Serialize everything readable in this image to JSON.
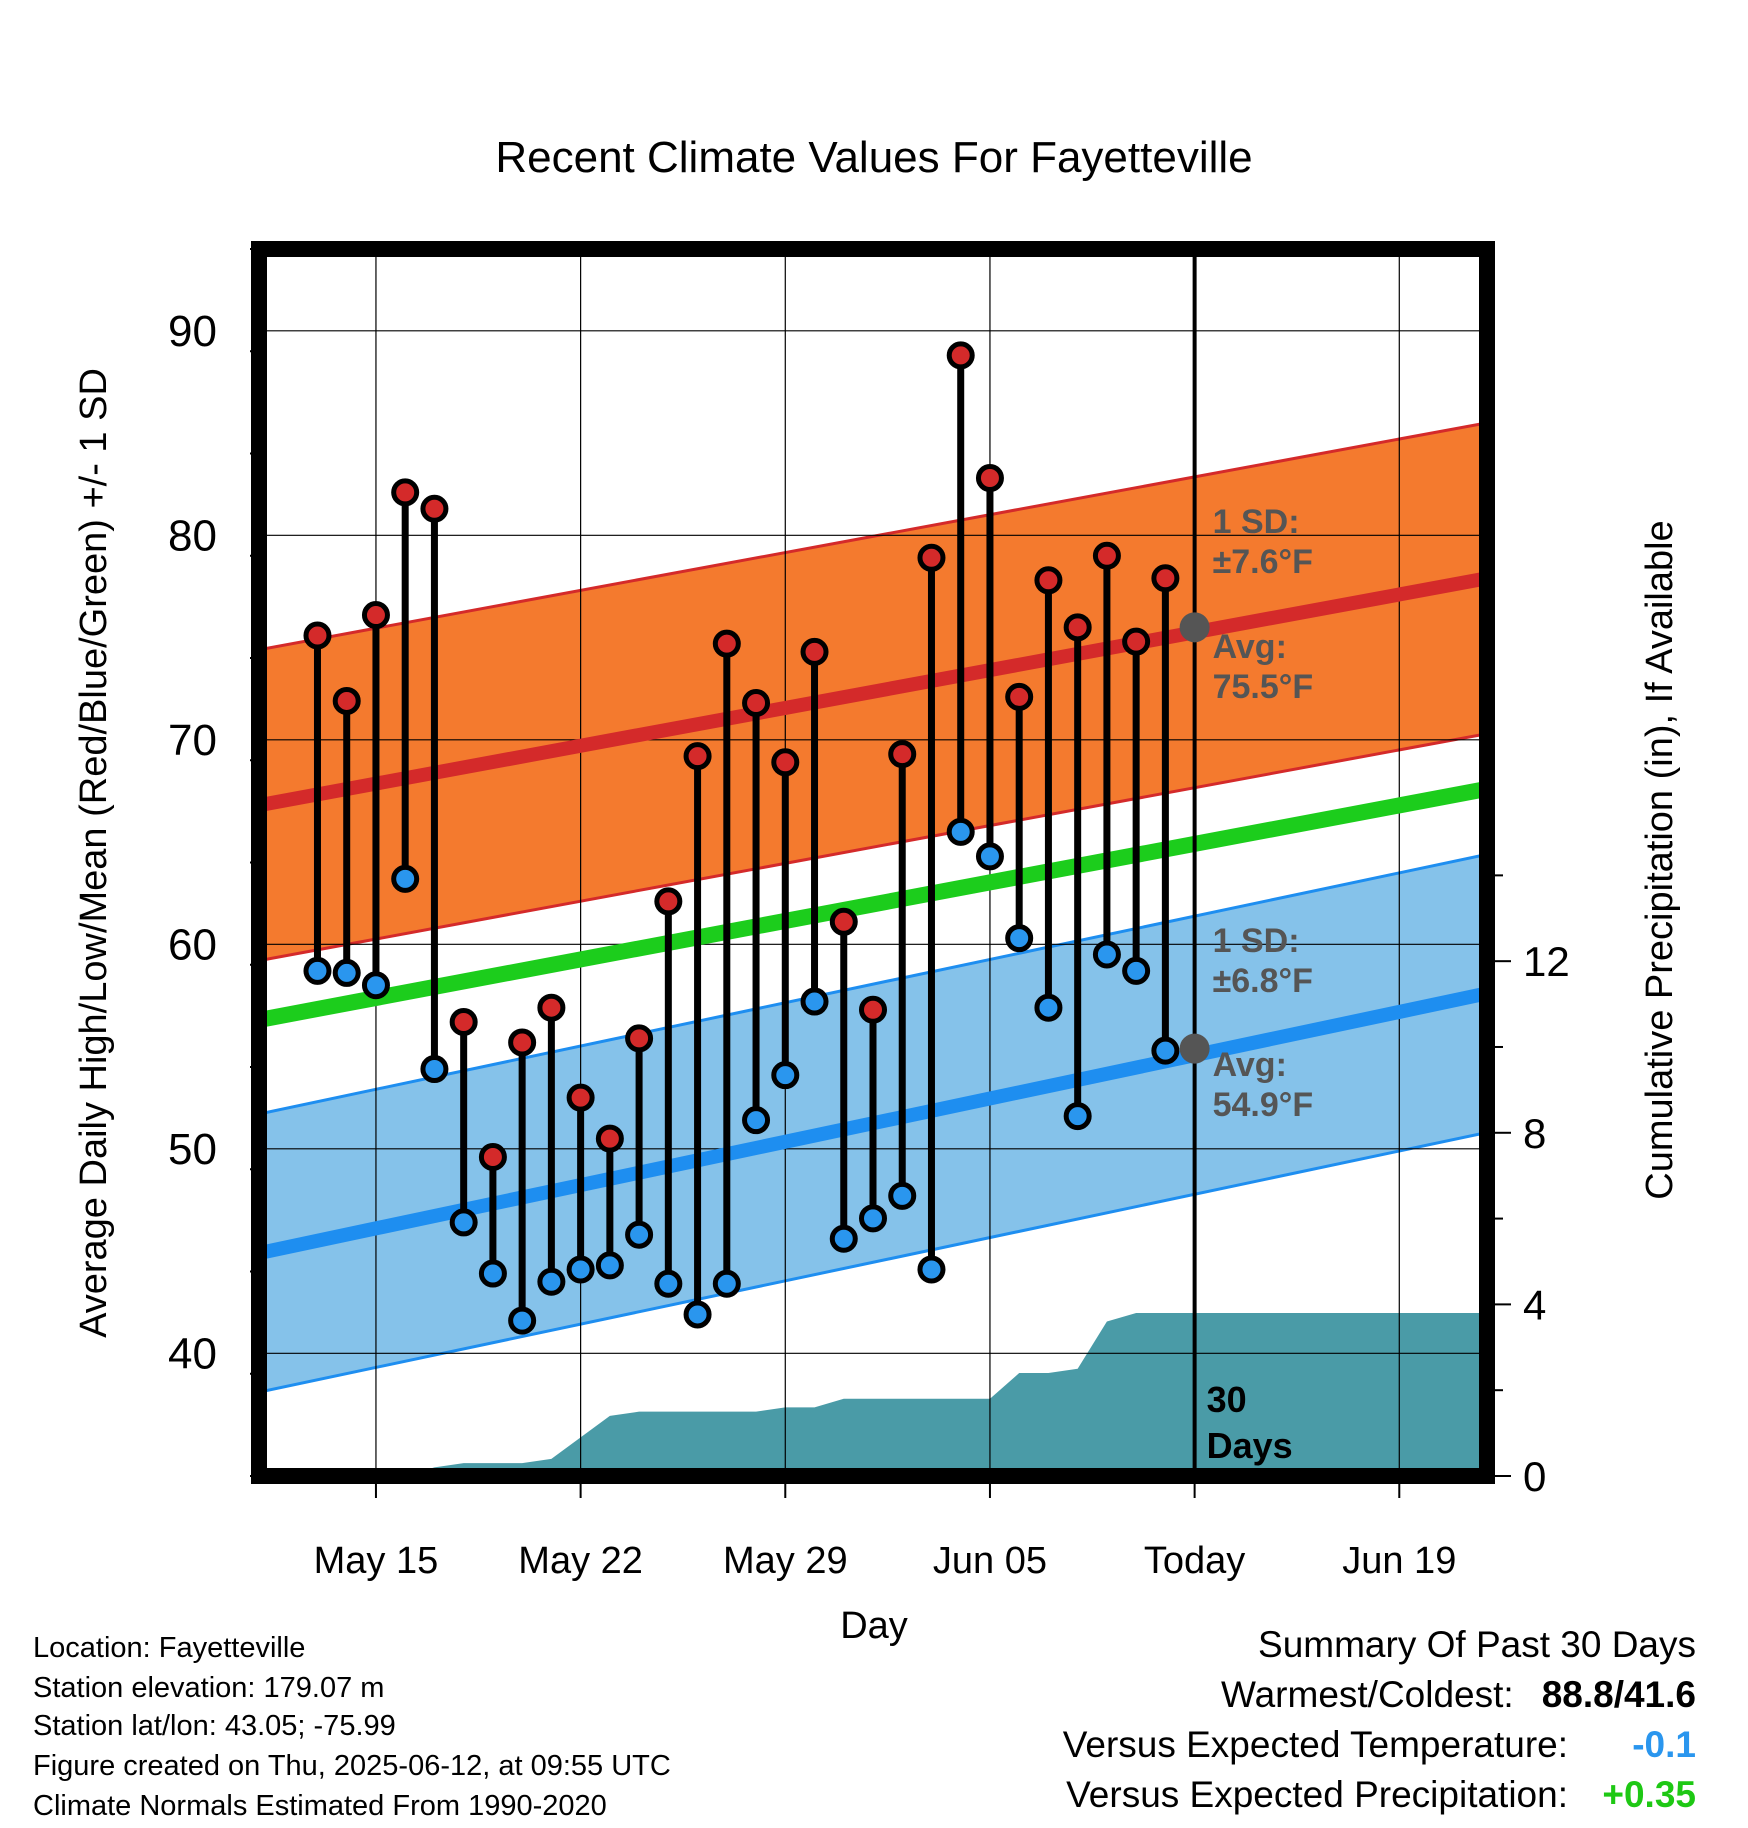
{
  "chart_data": {
    "type": "line",
    "title": "Recent Climate Values For Fayetteville",
    "xlabel": "Day",
    "ylabel": "Average Daily High/Low/Mean (Red/Blue/Green) +/- 1 SD",
    "y2label": "Cumulative Precipitation (in), If Available",
    "ylim": [
      34,
      94
    ],
    "y2lim": [
      0,
      28.6
    ],
    "y_ticks": [
      "40",
      "50",
      "60",
      "70",
      "80",
      "90"
    ],
    "y2_ticks": [
      "0",
      "4",
      "8",
      "12"
    ],
    "x_range": [
      "2025-05-11",
      "2025-06-22"
    ],
    "x_ticks": [
      {
        "date": "2025-05-15",
        "label": "May 15"
      },
      {
        "date": "2025-05-22",
        "label": "May 22"
      },
      {
        "date": "2025-05-29",
        "label": "May 29"
      },
      {
        "date": "2025-06-05",
        "label": "Jun 05"
      },
      {
        "date": "2025-06-12",
        "label": "Today"
      },
      {
        "date": "2025-06-19",
        "label": "Jun 19"
      }
    ],
    "grid": true,
    "today": "2025-06-12",
    "today_label": [
      "30",
      "Days"
    ],
    "normals": {
      "start_date": "2025-05-11",
      "end_date": "2025-06-22",
      "high_mean": [
        66.8,
        77.9
      ],
      "low_mean": [
        44.9,
        57.6
      ],
      "mean": [
        56.3,
        67.6
      ],
      "high_sd": 7.6,
      "low_sd": 6.8
    },
    "annotations": {
      "high_sd": [
        "1 SD:",
        "±7.6°F"
      ],
      "high_avg": [
        "Avg:",
        "75.5°F"
      ],
      "low_sd": [
        "1 SD:",
        "±6.8°F"
      ],
      "low_avg": [
        "Avg:",
        "54.9°F"
      ],
      "high_avg_value": 75.5,
      "low_avg_value": 54.9
    },
    "daily": {
      "dates": [
        "2025-05-13",
        "2025-05-14",
        "2025-05-15",
        "2025-05-16",
        "2025-05-17",
        "2025-05-18",
        "2025-05-19",
        "2025-05-20",
        "2025-05-21",
        "2025-05-22",
        "2025-05-23",
        "2025-05-24",
        "2025-05-25",
        "2025-05-26",
        "2025-05-27",
        "2025-05-28",
        "2025-05-29",
        "2025-05-30",
        "2025-05-31",
        "2025-06-01",
        "2025-06-02",
        "2025-06-03",
        "2025-06-04",
        "2025-06-05",
        "2025-06-06",
        "2025-06-07",
        "2025-06-08",
        "2025-06-09",
        "2025-06-10",
        "2025-06-11"
      ],
      "high": [
        75.1,
        71.9,
        76.1,
        82.1,
        81.3,
        56.2,
        49.6,
        55.2,
        56.9,
        52.5,
        50.5,
        55.4,
        62.1,
        69.2,
        74.7,
        71.8,
        68.9,
        74.3,
        61.1,
        56.8,
        69.3,
        78.9,
        88.8,
        82.8,
        72.1,
        77.8,
        75.5,
        79.0,
        74.8,
        77.9
      ],
      "low": [
        58.7,
        58.6,
        58.0,
        63.2,
        53.9,
        46.4,
        43.9,
        41.6,
        43.5,
        44.1,
        44.3,
        45.8,
        43.4,
        41.9,
        43.4,
        51.4,
        53.6,
        57.2,
        45.6,
        46.6,
        47.7,
        44.1,
        65.5,
        64.3,
        60.3,
        56.9,
        51.6,
        59.5,
        58.7,
        54.8
      ]
    },
    "precip": {
      "dates": [
        "2025-05-16",
        "2025-05-17",
        "2025-05-18",
        "2025-05-19",
        "2025-05-20",
        "2025-05-21",
        "2025-05-22",
        "2025-05-23",
        "2025-05-24",
        "2025-05-25",
        "2025-05-26",
        "2025-05-27",
        "2025-05-28",
        "2025-05-29",
        "2025-05-30",
        "2025-05-31",
        "2025-06-01",
        "2025-06-02",
        "2025-06-03",
        "2025-06-04",
        "2025-06-05",
        "2025-06-06",
        "2025-06-07",
        "2025-06-08",
        "2025-06-09",
        "2025-06-10",
        "2025-06-11",
        "2025-06-12",
        "2025-06-22"
      ],
      "cumulative": [
        0.0,
        0.2,
        0.3,
        0.3,
        0.3,
        0.4,
        0.9,
        1.4,
        1.5,
        1.5,
        1.5,
        1.5,
        1.5,
        1.6,
        1.6,
        1.8,
        1.8,
        1.8,
        1.8,
        1.8,
        1.8,
        2.4,
        2.4,
        2.5,
        3.6,
        3.8,
        3.8,
        3.8,
        3.8
      ]
    }
  },
  "info": {
    "location": "Location: Fayetteville",
    "elevation": "Station elevation: 179.07 m",
    "latlon": "Station lat/lon: 43.05; -75.99",
    "created": "Figure created on Thu, 2025-06-12, at 09:55 UTC",
    "normals_period": "Climate Normals Estimated From 1990-2020"
  },
  "summary": {
    "title": "Summary Of Past 30 Days",
    "warmest_coldest_label": "Warmest/Coldest:",
    "warmest_coldest_value": "88.8/41.6",
    "vs_temp_label": "Versus Expected Temperature:",
    "vs_temp_value": "-0.1",
    "vs_precip_label": "Versus Expected Precipitation:",
    "vs_precip_value": "+0.35",
    "colors": {
      "temp": "#2a96ee",
      "precip": "#1ec814"
    }
  },
  "colors": {
    "high_band": "#f47a2e",
    "high_line": "#d42a2a",
    "low_band": "#85c2ea",
    "low_line": "#1e8ef0",
    "mean_line": "#1ccd1c",
    "precip_fill": "#4a9ba7",
    "high_marker": "#d42a2a",
    "low_marker": "#2a96ee",
    "annotation_text": "#555555"
  }
}
